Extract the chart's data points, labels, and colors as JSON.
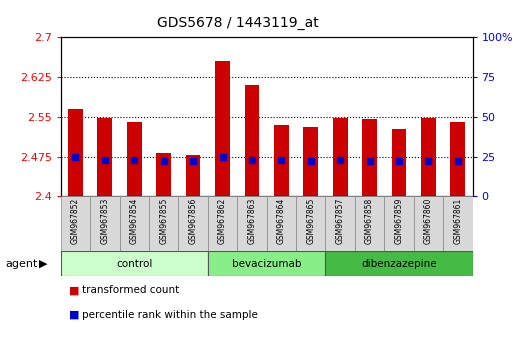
{
  "title": "GDS5678 / 1443119_at",
  "samples": [
    "GSM967852",
    "GSM967853",
    "GSM967854",
    "GSM967855",
    "GSM967856",
    "GSM967862",
    "GSM967863",
    "GSM967864",
    "GSM967865",
    "GSM967857",
    "GSM967858",
    "GSM967859",
    "GSM967860",
    "GSM967861"
  ],
  "transformed_counts": [
    2.565,
    2.548,
    2.54,
    2.482,
    2.479,
    2.655,
    2.61,
    2.535,
    2.53,
    2.548,
    2.545,
    2.528,
    2.548,
    2.54
  ],
  "percentile_ranks": [
    25,
    23,
    23,
    22,
    22,
    25,
    23,
    23,
    22,
    23,
    22,
    22,
    22,
    22
  ],
  "groups": [
    {
      "label": "control",
      "indices": [
        0,
        1,
        2,
        3,
        4
      ],
      "color": "#ccffcc"
    },
    {
      "label": "bevacizumab",
      "indices": [
        5,
        6,
        7,
        8
      ],
      "color": "#88ee88"
    },
    {
      "label": "dibenzazepine",
      "indices": [
        9,
        10,
        11,
        12,
        13
      ],
      "color": "#44bb44"
    }
  ],
  "ylim_left": [
    2.4,
    2.7
  ],
  "ylim_right": [
    0,
    100
  ],
  "yticks_left": [
    2.4,
    2.475,
    2.55,
    2.625,
    2.7
  ],
  "yticks_right": [
    0,
    25,
    50,
    75,
    100
  ],
  "ytick_labels_left": [
    "2.4",
    "2.475",
    "2.55",
    "2.625",
    "2.7"
  ],
  "ytick_labels_right": [
    "0",
    "25",
    "50",
    "75",
    "100%"
  ],
  "bar_color": "#cc0000",
  "marker_color": "#0000cc",
  "bar_bottom": 2.4,
  "background_color": "#ffffff",
  "dotted_levels": [
    2.475,
    2.55,
    2.625
  ],
  "legend_items": [
    "transformed count",
    "percentile rank within the sample"
  ]
}
